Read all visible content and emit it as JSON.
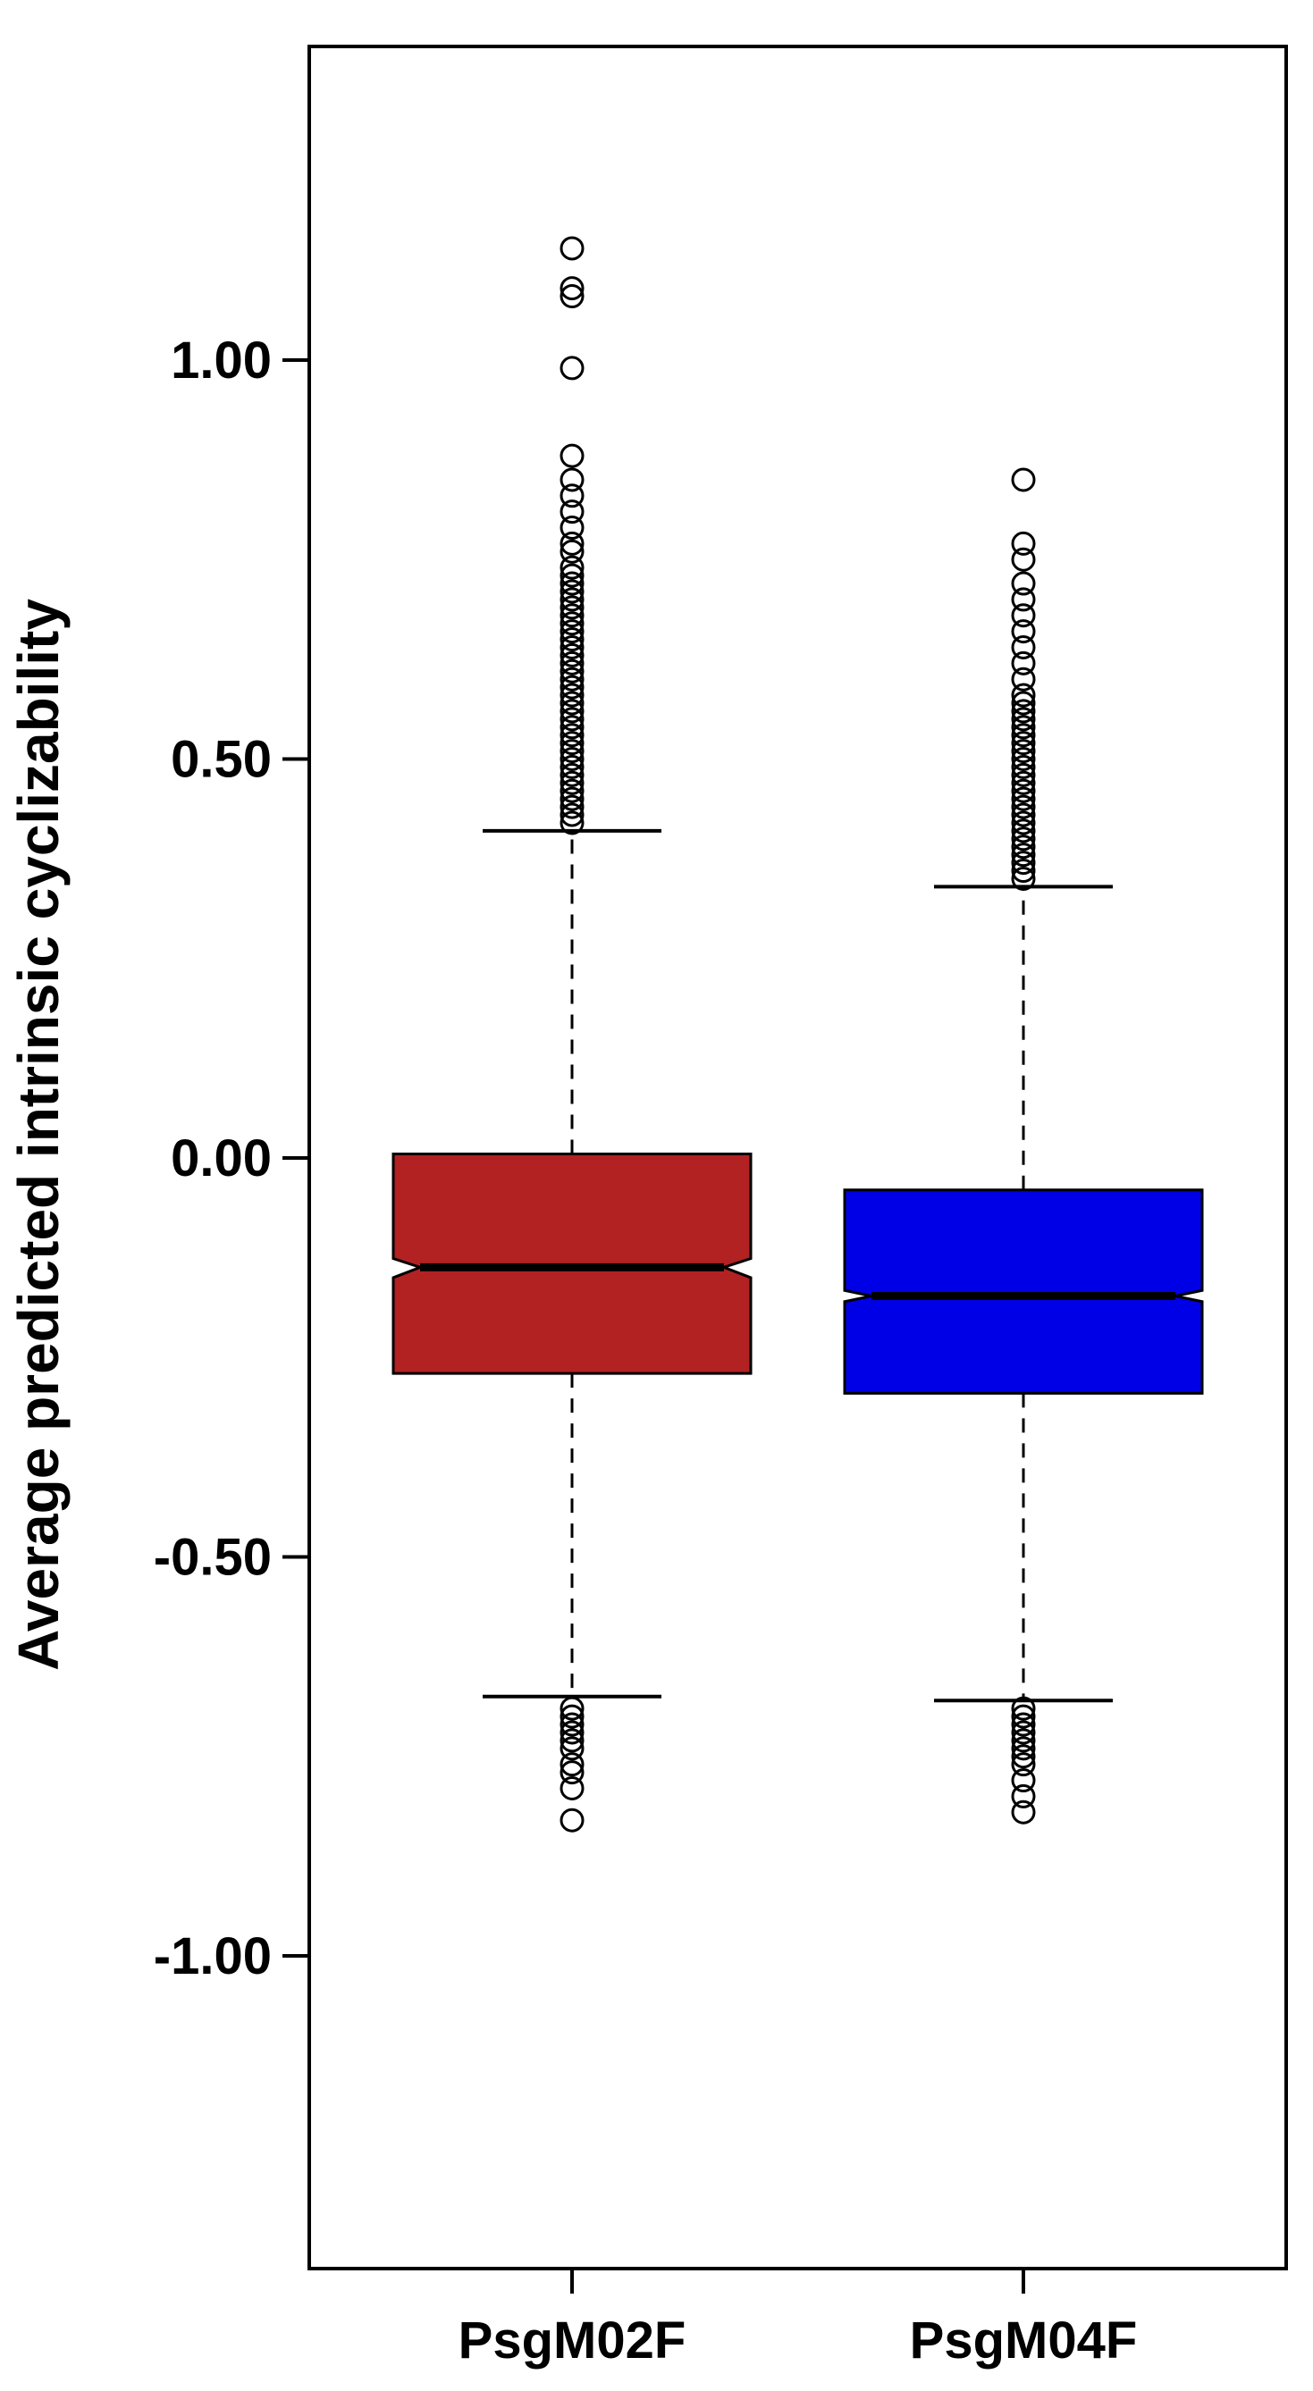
{
  "chart_data": {
    "type": "boxplot",
    "notched": true,
    "ylabel": "Average predicted intrinsic cyclizability",
    "xlabel": "",
    "title": "",
    "ylim": [
      -1.35,
      1.39
    ],
    "y_ticks": [
      1.0,
      0.5,
      0.0,
      -0.5,
      -1.0
    ],
    "y_tick_labels": [
      "1.00",
      "0.50",
      "0.00",
      "-0.50",
      "-1.00"
    ],
    "categories": [
      "PsgM02F",
      "PsgM04F"
    ],
    "colors": [
      "#B22222",
      "#0000E6"
    ],
    "series": [
      {
        "category": "PsgM02F",
        "color": "#B22222",
        "q1": -0.27,
        "median": -0.137,
        "q3": 0.005,
        "whisker_low": -0.675,
        "whisker_high": 0.41,
        "notch_low": -0.15,
        "notch_high": -0.126,
        "outliers_high": [
          1.14,
          1.09,
          1.08,
          0.99,
          0.88,
          0.85,
          0.83,
          0.81,
          0.79,
          0.77,
          0.76,
          0.74,
          0.73,
          0.72,
          0.71,
          0.7,
          0.69,
          0.68,
          0.67,
          0.66,
          0.65,
          0.64,
          0.63,
          0.62,
          0.61,
          0.6,
          0.59,
          0.58,
          0.57,
          0.56,
          0.55,
          0.54,
          0.53,
          0.52,
          0.51,
          0.5,
          0.49,
          0.48,
          0.47,
          0.46,
          0.45,
          0.44,
          0.43,
          0.42
        ],
        "outliers_low": [
          -0.69,
          -0.7,
          -0.71,
          -0.72,
          -0.73,
          -0.74,
          -0.76,
          -0.77,
          -0.79,
          -0.83
        ]
      },
      {
        "category": "PsgM04F",
        "color": "#0000E6",
        "q1": -0.295,
        "median": -0.173,
        "q3": -0.04,
        "whisker_low": -0.68,
        "whisker_high": 0.34,
        "notch_low": -0.18,
        "notch_high": -0.166,
        "outliers_high": [
          0.85,
          0.77,
          0.75,
          0.72,
          0.7,
          0.68,
          0.66,
          0.64,
          0.62,
          0.6,
          0.58,
          0.57,
          0.56,
          0.55,
          0.54,
          0.53,
          0.52,
          0.51,
          0.5,
          0.49,
          0.48,
          0.47,
          0.46,
          0.45,
          0.44,
          0.43,
          0.42,
          0.41,
          0.4,
          0.39,
          0.38,
          0.37,
          0.36,
          0.35
        ],
        "outliers_low": [
          -0.69,
          -0.7,
          -0.71,
          -0.72,
          -0.73,
          -0.74,
          -0.75,
          -0.76,
          -0.78,
          -0.8,
          -0.82
        ]
      }
    ]
  }
}
